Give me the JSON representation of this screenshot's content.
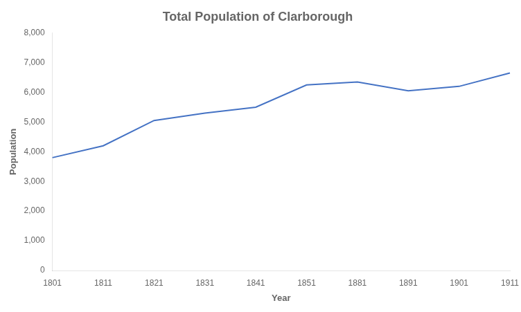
{
  "chart_data": {
    "type": "line",
    "title": "Total Population of Clarborough",
    "xlabel": "Year",
    "ylabel": "Population",
    "categories": [
      "1801",
      "1811",
      "1821",
      "1831",
      "1841",
      "1851",
      "1881",
      "1891",
      "1901",
      "1911"
    ],
    "values": [
      3800,
      4200,
      5050,
      5300,
      5500,
      6250,
      6350,
      6050,
      6200,
      6650
    ],
    "color": "#4472C4",
    "ylim": [
      0,
      8000
    ],
    "yticks": [
      0,
      {
        "value": 1000,
        "label": "1,000"
      },
      {
        "value": 2000,
        "label": "2,000"
      },
      {
        "value": 3000,
        "label": "3,000"
      },
      {
        "value": 4000,
        "label": "4,000"
      },
      {
        "value": 5000,
        "label": "5,000"
      },
      {
        "value": 6000,
        "label": "6,000"
      },
      {
        "value": 7000,
        "label": "7,000"
      },
      {
        "value": 8000,
        "label": "8,000"
      }
    ],
    "grid": false
  }
}
